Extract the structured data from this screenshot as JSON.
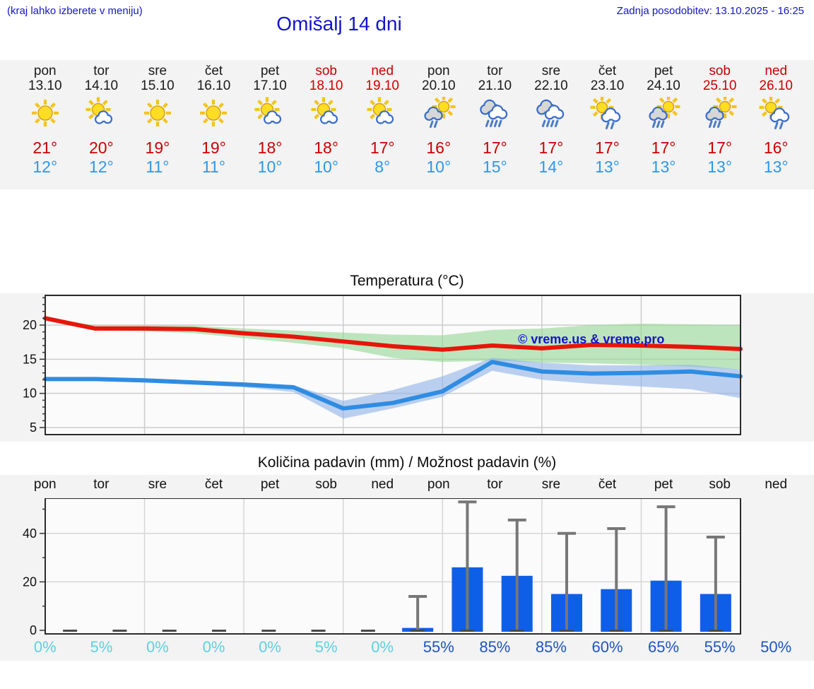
{
  "header": {
    "note_left": "(kraj lahko izberete v meniju)",
    "title": "Omišalj 14 dni",
    "updated": "Zadnja posodobitev: 13.10.2025 - 16:25"
  },
  "colors": {
    "accent_blue": "#1414cc",
    "weekend_red": "#cc0000",
    "temp_max_red": "#cc0000",
    "temp_min_blue": "#2e97e8",
    "pct_cyan": "#5ad2e2",
    "pct_blue": "#1b55c4",
    "bar_blue": "#0f5ee8",
    "line_red": "#e8150a",
    "line_blue": "#2f8ce2",
    "band_green": "#95d795",
    "band_blue": "#8fb2e8",
    "whisker_gray": "#777777",
    "band_bg": "#f3f3f3",
    "plot_bg": "#fbfbfb",
    "grid_gray": "#cccccc"
  },
  "forecast_days": [
    {
      "day": "pon",
      "date": "13.10",
      "weekend": false,
      "icon": "sun",
      "tmax": "21°",
      "tmin": "12°"
    },
    {
      "day": "tor",
      "date": "14.10",
      "weekend": false,
      "icon": "sun-cloud",
      "tmax": "20°",
      "tmin": "12°"
    },
    {
      "day": "sre",
      "date": "15.10",
      "weekend": false,
      "icon": "sun",
      "tmax": "19°",
      "tmin": "11°"
    },
    {
      "day": "čet",
      "date": "16.10",
      "weekend": false,
      "icon": "sun",
      "tmax": "19°",
      "tmin": "11°"
    },
    {
      "day": "pet",
      "date": "17.10",
      "weekend": false,
      "icon": "sun-cloud",
      "tmax": "18°",
      "tmin": "10°"
    },
    {
      "day": "sob",
      "date": "18.10",
      "weekend": true,
      "icon": "sun-cloud",
      "tmax": "18°",
      "tmin": "10°"
    },
    {
      "day": "ned",
      "date": "19.10",
      "weekend": true,
      "icon": "sun-cloud",
      "tmax": "17°",
      "tmin": "8°"
    },
    {
      "day": "pon",
      "date": "20.10",
      "weekend": false,
      "icon": "sun-rain-2",
      "tmax": "16°",
      "tmin": "10°"
    },
    {
      "day": "tor",
      "date": "21.10",
      "weekend": false,
      "icon": "rain-heavy",
      "tmax": "17°",
      "tmin": "15°"
    },
    {
      "day": "sre",
      "date": "22.10",
      "weekend": false,
      "icon": "rain-heavy",
      "tmax": "17°",
      "tmin": "14°"
    },
    {
      "day": "čet",
      "date": "23.10",
      "weekend": false,
      "icon": "sun-cloud-rain",
      "tmax": "17°",
      "tmin": "13°"
    },
    {
      "day": "pet",
      "date": "24.10",
      "weekend": false,
      "icon": "sun-rain-3",
      "tmax": "17°",
      "tmin": "13°"
    },
    {
      "day": "sob",
      "date": "25.10",
      "weekend": true,
      "icon": "sun-rain-3",
      "tmax": "17°",
      "tmin": "13°"
    },
    {
      "day": "ned",
      "date": "26.10",
      "weekend": true,
      "icon": "sun-cloud-rain",
      "tmax": "16°",
      "tmin": "13°"
    }
  ],
  "chart_data": [
    {
      "type": "line",
      "title": "Temperatura (°C)",
      "watermark": "© vreme.us & vreme.pro",
      "x_day_boundaries": [
        0,
        1,
        2,
        3,
        4,
        5,
        6,
        7,
        8,
        9,
        10,
        11,
        12,
        13,
        14
      ],
      "yticks": [
        5,
        10,
        15,
        20
      ],
      "ylim": [
        4,
        24.3
      ],
      "grid": true,
      "series": [
        {
          "name": "max-temp",
          "color": "#e8150a",
          "values": [
            21.0,
            19.5,
            19.5,
            19.4,
            18.8,
            18.3,
            17.6,
            16.9,
            16.4,
            17.0,
            16.6,
            17.1,
            17.0,
            16.8,
            16.5
          ]
        },
        {
          "name": "min-temp",
          "color": "#2f8ce2",
          "values": [
            12.1,
            12.1,
            11.9,
            11.6,
            11.3,
            10.9,
            7.8,
            8.6,
            10.3,
            14.6,
            13.2,
            12.9,
            13.0,
            13.2,
            12.5
          ]
        }
      ],
      "bands": [
        {
          "name": "max-range",
          "color": "#95d795",
          "opacity": 0.6,
          "upper": [
            21.0,
            20.0,
            20.0,
            19.9,
            19.5,
            19.2,
            18.9,
            18.6,
            18.5,
            19.3,
            19.5,
            20.0,
            20.2,
            20.1,
            20.0
          ],
          "lower": [
            21.0,
            19.2,
            19.1,
            18.8,
            18.1,
            17.4,
            16.6,
            15.2,
            14.6,
            14.8,
            14.5,
            14.4,
            14.2,
            13.9,
            13.5
          ]
        },
        {
          "name": "min-range",
          "color": "#8fb2e8",
          "opacity": 0.6,
          "upper": [
            12.2,
            12.3,
            12.2,
            11.9,
            11.6,
            11.2,
            8.9,
            10.5,
            12.5,
            15.2,
            14.5,
            14.1,
            14.1,
            14.2,
            13.5
          ],
          "lower": [
            11.9,
            11.8,
            11.6,
            11.3,
            10.9,
            10.2,
            6.3,
            7.8,
            9.5,
            13.3,
            12.0,
            11.4,
            11.0,
            10.6,
            9.3
          ]
        }
      ]
    },
    {
      "type": "bar",
      "title": "Količina padavin (mm) / Možnost padavin (%)",
      "categories": [
        "pon",
        "tor",
        "sre",
        "čet",
        "pet",
        "sob",
        "ned",
        "pon",
        "tor",
        "sre",
        "čet",
        "pet",
        "sob",
        "ned"
      ],
      "values_mm": [
        0,
        0,
        0,
        0,
        0,
        0,
        0,
        1,
        26,
        22.5,
        15,
        17,
        20.5,
        15
      ],
      "max_mm": [
        0,
        0,
        0,
        0,
        0,
        0,
        0,
        14,
        53,
        45.5,
        40,
        42,
        51,
        38.5
      ],
      "probability_pct": [
        0,
        5,
        0,
        0,
        0,
        5,
        0,
        55,
        85,
        85,
        60,
        65,
        55,
        50
      ],
      "yticks": [
        0,
        20,
        40
      ],
      "ylim": [
        0,
        54
      ],
      "grid": true
    }
  ]
}
